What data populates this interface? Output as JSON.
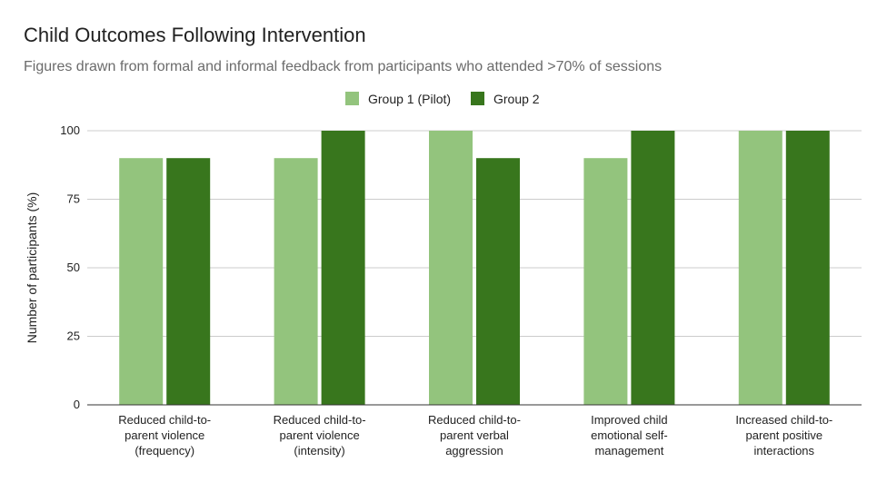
{
  "chart_data": {
    "type": "bar",
    "title": "Child Outcomes Following Intervention",
    "subtitle": "Figures drawn from formal and informal feedback from participants who attended >70% of sessions",
    "xlabel": "",
    "ylabel": "Number of participants (%)",
    "ylim": [
      0,
      100
    ],
    "yticks": [
      0,
      25,
      50,
      75,
      100
    ],
    "grid": true,
    "legend_position": "top",
    "categories": [
      [
        "Reduced child-to-",
        "parent violence",
        "(frequency)"
      ],
      [
        "Reduced child-to-",
        "parent violence",
        "(intensity)"
      ],
      [
        "Reduced child-to-",
        "parent verbal",
        "aggression"
      ],
      [
        "Improved child",
        "emotional self-",
        "management"
      ],
      [
        "Increased child-to-",
        "parent positive",
        "interactions"
      ]
    ],
    "series": [
      {
        "name": "Group 1 (Pilot)",
        "color": "#93c47d",
        "values": [
          90,
          90,
          100,
          90,
          100
        ]
      },
      {
        "name": "Group 2",
        "color": "#38761d",
        "values": [
          90,
          100,
          90,
          100,
          100
        ]
      }
    ]
  }
}
